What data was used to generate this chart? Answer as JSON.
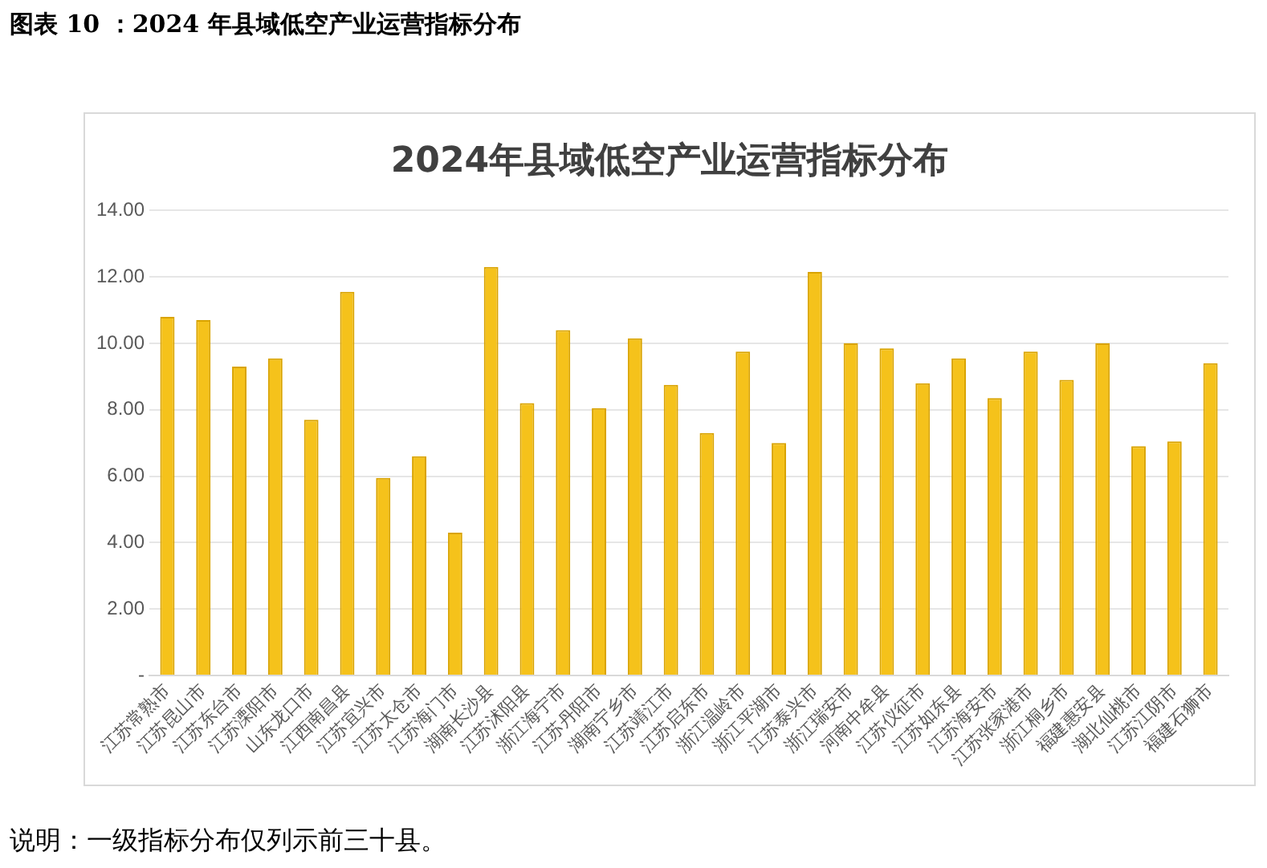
{
  "chart_data": {
    "type": "bar",
    "title": "2024年县域低空产业运营指标分布",
    "annotations": [
      "图表 10 ：2024 年县域低空产业运营指标分布",
      "说明：一级指标分布仅列示前三十县。"
    ],
    "categories": [
      "江苏常熟市",
      "江苏昆山市",
      "江苏东台市",
      "江苏溧阳市",
      "山东龙口市",
      "江西南昌县",
      "江苏宜兴市",
      "江苏太仓市",
      "江苏海门市",
      "湖南长沙县",
      "江苏沭阳县",
      "浙江海宁市",
      "江苏丹阳市",
      "湖南宁乡市",
      "江苏靖江市",
      "江苏启东市",
      "浙江温岭市",
      "浙江平湖市",
      "江苏泰兴市",
      "浙江瑞安市",
      "河南中牟县",
      "江苏仪征市",
      "江苏如东县",
      "江苏海安市",
      "江苏张家港市",
      "浙江桐乡市",
      "福建惠安县",
      "湖北仙桃市",
      "江苏江阴市",
      "福建石狮市"
    ],
    "values": [
      10.8,
      10.7,
      9.3,
      9.55,
      7.7,
      11.55,
      5.95,
      6.6,
      4.3,
      12.3,
      8.2,
      10.4,
      8.05,
      10.15,
      8.75,
      7.3,
      9.75,
      7.0,
      12.15,
      10.0,
      9.85,
      8.8,
      9.55,
      8.35,
      9.75,
      8.9,
      10.0,
      6.9,
      7.05,
      9.4
    ],
    "color": "#f5c21b",
    "ylim": [
      0,
      14
    ],
    "yticks": [
      {
        "value": 0,
        "label": "-"
      },
      {
        "value": 2,
        "label": "2.00"
      },
      {
        "value": 4,
        "label": "4.00"
      },
      {
        "value": 6,
        "label": "6.00"
      },
      {
        "value": 8,
        "label": "8.00"
      },
      {
        "value": 10,
        "label": "10.00"
      },
      {
        "value": 12,
        "label": "12.00"
      },
      {
        "value": 14,
        "label": "14.00"
      }
    ],
    "grid": "y"
  }
}
